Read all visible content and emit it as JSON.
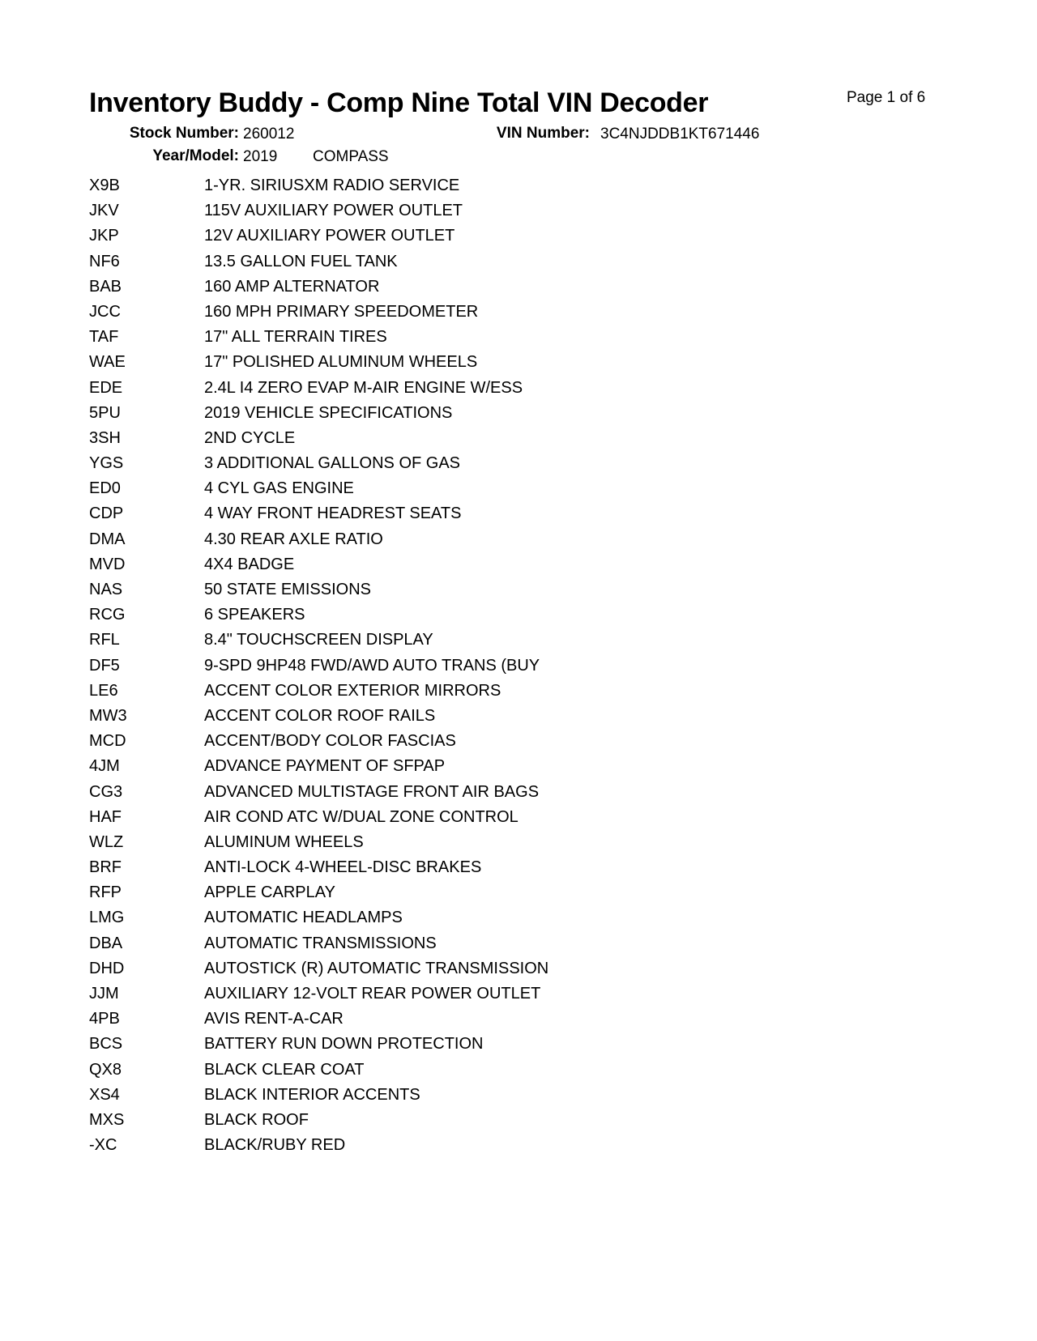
{
  "header": {
    "title": "Inventory Buddy - Comp Nine Total VIN Decoder",
    "page": "Page 1 of 6",
    "stock_label": "Stock Number:",
    "stock_value": "260012",
    "vin_label": "VIN Number:",
    "vin_value": "3C4NJDDB1KT671446",
    "year_model_label": "Year/Model:",
    "year": "2019",
    "model": "COMPASS"
  },
  "items": [
    {
      "code": "X9B",
      "desc": "1-YR. SIRIUSXM RADIO SERVICE"
    },
    {
      "code": "JKV",
      "desc": "115V AUXILIARY POWER OUTLET"
    },
    {
      "code": "JKP",
      "desc": "12V AUXILIARY POWER OUTLET"
    },
    {
      "code": "NF6",
      "desc": "13.5 GALLON FUEL TANK"
    },
    {
      "code": "BAB",
      "desc": "160 AMP ALTERNATOR"
    },
    {
      "code": "JCC",
      "desc": "160 MPH PRIMARY SPEEDOMETER"
    },
    {
      "code": "TAF",
      "desc": "17\" ALL TERRAIN TIRES"
    },
    {
      "code": "WAE",
      "desc": "17\" POLISHED ALUMINUM WHEELS"
    },
    {
      "code": "EDE",
      "desc": "2.4L I4 ZERO EVAP M-AIR ENGINE W/ESS"
    },
    {
      "code": "5PU",
      "desc": "2019 VEHICLE SPECIFICATIONS"
    },
    {
      "code": "3SH",
      "desc": "2ND CYCLE"
    },
    {
      "code": "YGS",
      "desc": "3 ADDITIONAL GALLONS OF GAS"
    },
    {
      "code": "ED0",
      "desc": "4 CYL GAS ENGINE"
    },
    {
      "code": "CDP",
      "desc": "4 WAY FRONT HEADREST SEATS"
    },
    {
      "code": "DMA",
      "desc": "4.30 REAR AXLE RATIO"
    },
    {
      "code": "MVD",
      "desc": "4X4 BADGE"
    },
    {
      "code": "NAS",
      "desc": "50 STATE EMISSIONS"
    },
    {
      "code": "RCG",
      "desc": "6 SPEAKERS"
    },
    {
      "code": "RFL",
      "desc": "8.4\" TOUCHSCREEN DISPLAY"
    },
    {
      "code": "DF5",
      "desc": "9-SPD 9HP48 FWD/AWD AUTO TRANS (BUY"
    },
    {
      "code": "LE6",
      "desc": "ACCENT COLOR EXTERIOR MIRRORS"
    },
    {
      "code": "MW3",
      "desc": "ACCENT COLOR ROOF RAILS"
    },
    {
      "code": "MCD",
      "desc": "ACCENT/BODY COLOR FASCIAS"
    },
    {
      "code": "4JM",
      "desc": "ADVANCE PAYMENT OF SFPAP"
    },
    {
      "code": "CG3",
      "desc": "ADVANCED MULTISTAGE FRONT AIR BAGS"
    },
    {
      "code": "HAF",
      "desc": "AIR COND ATC W/DUAL ZONE CONTROL"
    },
    {
      "code": "WLZ",
      "desc": "ALUMINUM WHEELS"
    },
    {
      "code": "BRF",
      "desc": "ANTI-LOCK 4-WHEEL-DISC BRAKES"
    },
    {
      "code": "RFP",
      "desc": "APPLE CARPLAY"
    },
    {
      "code": "LMG",
      "desc": "AUTOMATIC HEADLAMPS"
    },
    {
      "code": "DBA",
      "desc": "AUTOMATIC TRANSMISSIONS"
    },
    {
      "code": "DHD",
      "desc": "AUTOSTICK (R) AUTOMATIC TRANSMISSION"
    },
    {
      "code": "JJM",
      "desc": "AUXILIARY 12-VOLT REAR POWER OUTLET"
    },
    {
      "code": "4PB",
      "desc": "AVIS RENT-A-CAR"
    },
    {
      "code": "BCS",
      "desc": "BATTERY RUN DOWN PROTECTION"
    },
    {
      "code": "QX8",
      "desc": "BLACK CLEAR COAT"
    },
    {
      "code": "XS4",
      "desc": "BLACK INTERIOR ACCENTS"
    },
    {
      "code": "MXS",
      "desc": "BLACK ROOF"
    },
    {
      "code": "-XC",
      "desc": "BLACK/RUBY RED"
    }
  ]
}
